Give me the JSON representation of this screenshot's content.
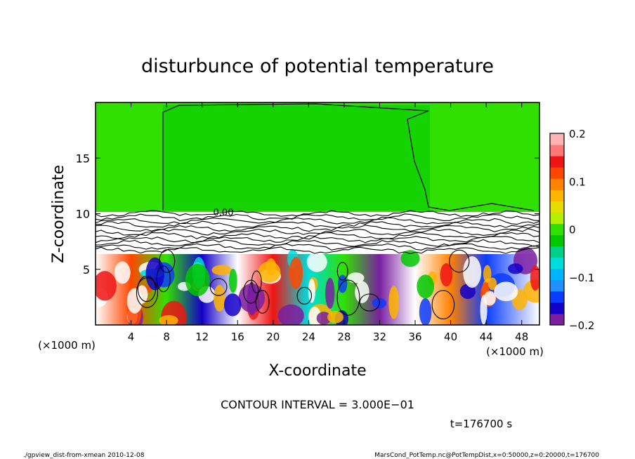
{
  "chart_data": {
    "type": "heatmap",
    "title": "disturbunce of potential temperature",
    "xlabel": "X-coordinate",
    "ylabel": "Z-coordinate",
    "x_unit": "(×1000 m)",
    "y_unit": "(×1000 m)",
    "xlim": [
      0,
      50
    ],
    "ylim": [
      0,
      20
    ],
    "x_ticks": [
      4,
      8,
      12,
      16,
      20,
      24,
      28,
      32,
      36,
      40,
      44,
      48
    ],
    "y_ticks": [
      5,
      10,
      15
    ],
    "colorbar": {
      "range": [
        -0.2,
        0.2
      ],
      "ticks": [
        0.2,
        0.1,
        0,
        -0.1,
        -0.2
      ],
      "tick_labels": [
        "0.2",
        "0.1",
        "0",
        "−0.1",
        "−0.2"
      ],
      "colors": [
        "#7a1fa0",
        "#1400c8",
        "#0a3cff",
        "#1e90ff",
        "#00b4ff",
        "#00dcdc",
        "#00d08a",
        "#00c800",
        "#30e000",
        "#b4f000",
        "#e6dc00",
        "#ffb400",
        "#ff8200",
        "#ff4600",
        "#f01414",
        "#ff7878",
        "#ffb4b4"
      ]
    },
    "regions": [
      {
        "z_range": [
          10,
          20
        ],
        "level": "near zero (≈0)"
      },
      {
        "z_range": [
          6.5,
          10
        ],
        "level": "dense contours (small values)"
      },
      {
        "z_range": [
          0,
          6.5
        ],
        "level": "mixed −0.2 to 0.2 (convective)"
      }
    ],
    "contour_label": "0.00",
    "contour_interval_text": "CONTOUR INTERVAL = 3.000E−01",
    "time_text": "t=176700 s"
  },
  "footer": {
    "left": "./gpview_dist-from-xmean  2010-12-08",
    "right": "MarsCond_PotTemp.nc@PotTempDist,x=0:50000,z=0:20000,t=176700"
  },
  "colors": {
    "upper_region": "#30e000",
    "frame": "#000000"
  }
}
